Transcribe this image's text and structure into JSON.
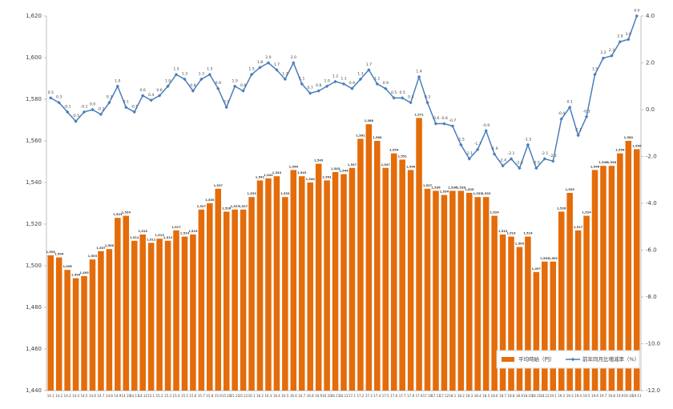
{
  "chart_data": {
    "type": "bar-line",
    "categories": [
      "14.1",
      "14.2",
      "14.3",
      "14.4",
      "14.5",
      "14.6",
      "14.7",
      "14.8",
      "14.9",
      "14.10",
      "14.11",
      "14.12",
      "15.1",
      "15.2",
      "15.3",
      "15.4",
      "15.5",
      "15.6",
      "15.7",
      "15.8",
      "15.9",
      "15.10",
      "15.11",
      "15.12",
      "16.1",
      "16.2",
      "16.3",
      "16.4",
      "16.5",
      "16.6",
      "16.7",
      "16.8",
      "16.9",
      "16.10",
      "16.11",
      "16.12",
      "17.1",
      "17.2",
      "17.3",
      "17.4",
      "17.5",
      "17.6",
      "17.7",
      "17.8",
      "17.9",
      "17.10",
      "17.11",
      "17.12",
      "18.1",
      "18.2",
      "18.3",
      "18.4",
      "18.5",
      "18.6",
      "18.7",
      "18.8",
      "18.9",
      "18.10",
      "18.11",
      "18.12",
      "19.1",
      "19.2",
      "19.3",
      "19.4",
      "19.5",
      "19.6",
      "19.7",
      "19.8",
      "19.9",
      "19.10",
      "19.11"
    ],
    "series": [
      {
        "name": "平均時給（円）",
        "color": "#e46c0a",
        "values": [
          1505,
          1504,
          1498,
          1494,
          1495,
          1503,
          1507,
          1508,
          1523,
          1524,
          1512,
          1515,
          1511,
          1513,
          1512,
          1517,
          1514,
          1515,
          1527,
          1530,
          1537,
          1526,
          1527,
          1527,
          1533,
          1541,
          1542,
          1543,
          1533,
          1546,
          1543,
          1540,
          1549,
          1541,
          1545,
          1544,
          1547,
          1561,
          1568,
          1560,
          1547,
          1554,
          1551,
          1546,
          1571,
          1537,
          1536,
          1534,
          1536,
          1536,
          1535,
          1533,
          1533,
          1524,
          1515,
          1514,
          1509,
          1514,
          1497,
          1502,
          1502,
          1526,
          1535,
          1517,
          1524,
          1546,
          1548,
          1548,
          1554,
          1560,
          1556
        ],
        "value_labels": [
          "1,505",
          "1,504",
          "1,498",
          "1,494",
          "1,495",
          "1,503",
          "1,507",
          "1,508",
          "1,523",
          "1,524",
          "1,512",
          "1,515",
          "1,511",
          "1,513",
          "1,512",
          "1,517",
          "1,514",
          "1,515",
          "1,527",
          "1,530",
          "1,537",
          "1,526",
          "1,527",
          "1,527",
          "1,533",
          "1,541",
          "1,542",
          "1,543",
          "1,533",
          "1,546",
          "1,543",
          "1,540",
          "1,549",
          "1,541",
          "1,545",
          "1,544",
          "1,547",
          "1,561",
          "1,568",
          "1,560",
          "1,547",
          "1,554",
          "1,551",
          "1,546",
          "1,571",
          "1,537",
          "1,536",
          "1,534",
          "1,536",
          "1,536",
          "1,535",
          "1,533",
          "1,533",
          "1,524",
          "1,515",
          "1,514",
          "1,509",
          "1,514",
          "1,497",
          "1,502",
          "1,502",
          "1,526",
          "1,535",
          "1,517",
          "1,524",
          "1,546",
          "1,548",
          "1,548",
          "1,554",
          "1,560",
          "1,556"
        ]
      },
      {
        "name": "前年同月比増減率（%）",
        "color": "#4a7ebb",
        "axis": "y2",
        "values": [
          0.5,
          0.3,
          -0.1,
          -0.5,
          -0.1,
          0.0,
          -0.2,
          0.3,
          1.0,
          0.1,
          -0.1,
          0.6,
          0.4,
          0.6,
          1.0,
          1.5,
          1.3,
          0.8,
          1.3,
          1.5,
          0.9,
          0.1,
          1.0,
          0.8,
          1.5,
          1.8,
          2.0,
          1.7,
          1.3,
          2.0,
          1.1,
          0.7,
          0.8,
          1.0,
          1.2,
          1.1,
          0.9,
          1.3,
          1.7,
          1.1,
          0.9,
          0.5,
          0.5,
          0.3,
          1.4,
          0.3,
          -0.6,
          -0.6,
          -0.7,
          -1.5,
          -2.1,
          -1.7,
          -0.9,
          -1.9,
          -2.4,
          -2.1,
          -2.5,
          -1.5,
          -2.5,
          -2.1,
          -2.2,
          -0.4,
          0.1,
          -1.1,
          -0.3,
          1.5,
          2.2,
          2.3,
          2.9,
          3.0,
          4.0
        ],
        "value_labels": [
          "0.5",
          "0.3",
          "-0.1",
          "-0.5",
          "-0.1",
          "0.0",
          "-0.2",
          "0.3",
          "1.0",
          "0.1",
          "-0.1",
          "0.6",
          "0.4",
          "0.6",
          "1.0",
          "1.5",
          "1.3",
          "0.8",
          "1.3",
          "1.5",
          "0.9",
          "0.1",
          "1.0",
          "0.8",
          "1.5",
          "1.8",
          "2.0",
          "1.7",
          "1.3",
          "2.0",
          "1.1",
          "0.7",
          "0.8",
          "1.0",
          "1.2",
          "1.1",
          "0.9",
          "1.3",
          "1.7",
          "1.1",
          "0.9",
          "0.5",
          "0.5",
          "0.3",
          "1.4",
          "0.3",
          "-0.6",
          "-0.6",
          "-0.7",
          "-1.5",
          "-2.1",
          "-1.7",
          "-0.9",
          "-1.9",
          "-2.4",
          "-2.1",
          "-2.5",
          "-1.5",
          "-2.5",
          "-2.1",
          "-2.2",
          "-0.4",
          "0.1",
          "-1.1",
          "-0.3",
          "1.5",
          "2.2",
          "2.3",
          "2.9",
          "3.0",
          "4.0"
        ]
      }
    ],
    "ylim": [
      1440,
      1620
    ],
    "yticks": [
      {
        "value": 1440,
        "label": "1,440"
      },
      {
        "value": 1460,
        "label": "1,460"
      },
      {
        "value": 1480,
        "label": "1,480"
      },
      {
        "value": 1500,
        "label": "1,500"
      },
      {
        "value": 1520,
        "label": "1,520"
      },
      {
        "value": 1540,
        "label": "1,540"
      },
      {
        "value": 1560,
        "label": "1,560"
      },
      {
        "value": 1580,
        "label": "1,580"
      },
      {
        "value": 1600,
        "label": "1,600"
      },
      {
        "value": 1620,
        "label": "1,620"
      }
    ],
    "y2lim": [
      -12,
      4
    ],
    "y2ticks": [
      {
        "value": -12,
        "label": "-12.0"
      },
      {
        "value": -10,
        "label": "-10.0"
      },
      {
        "value": -8,
        "label": "-8.0"
      },
      {
        "value": -6,
        "label": "-6.0"
      },
      {
        "value": -4,
        "label": "-4.0"
      },
      {
        "value": -2,
        "label": "-2.0"
      },
      {
        "value": 0,
        "label": "0.0"
      },
      {
        "value": 2,
        "label": "2.0"
      },
      {
        "value": 4,
        "label": "4.0"
      }
    ],
    "legend": "lower-right"
  }
}
